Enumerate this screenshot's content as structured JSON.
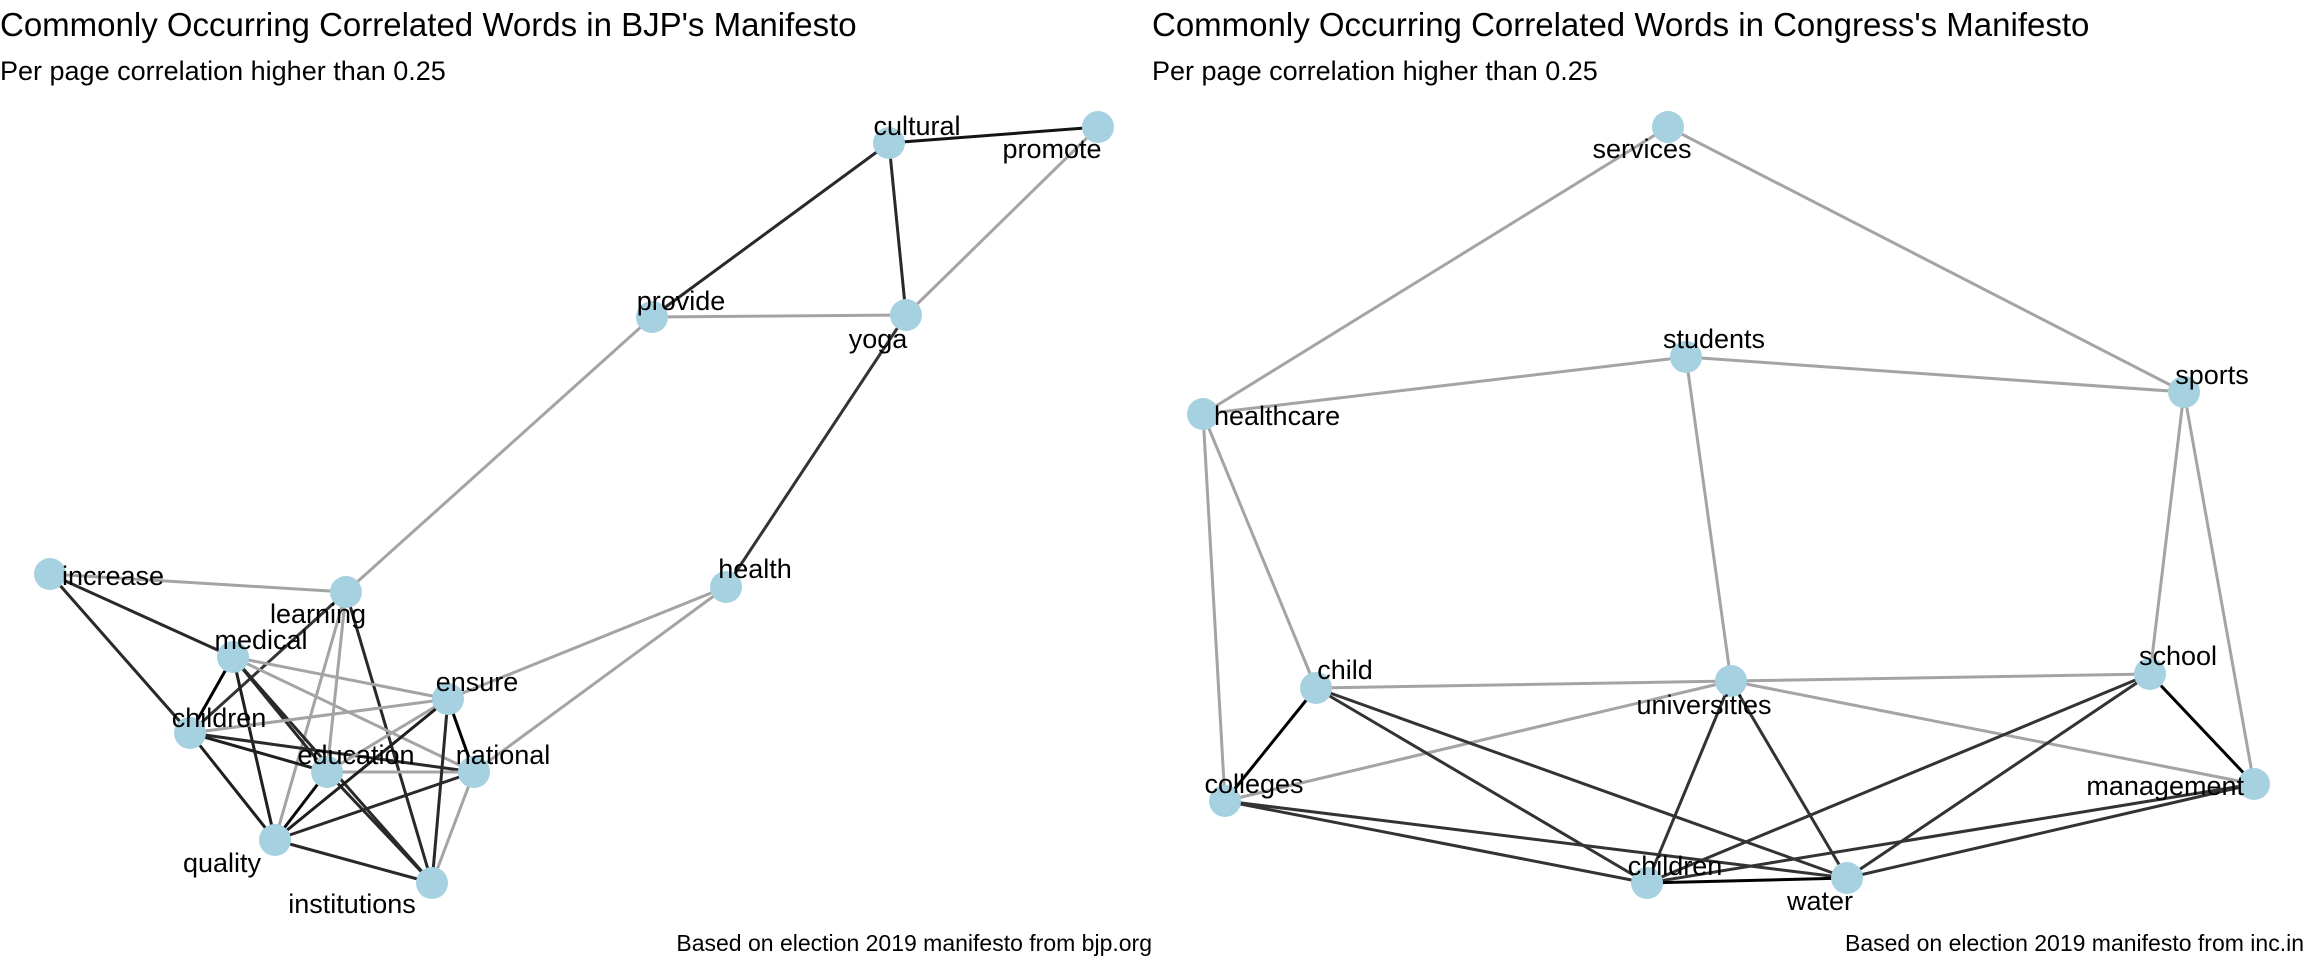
{
  "graphs": [
    {
      "title": "Commonly Occurring Correlated Words in BJP's Manifesto",
      "subtitle": "Per page correlation higher than 0.25",
      "caption": "Based on election 2019 manifesto from bjp.org",
      "node_color": "#a6d1e1",
      "nodes": [
        {
          "id": "cultural",
          "label": "cultural"
        },
        {
          "id": "promote",
          "label": "promote"
        },
        {
          "id": "provide",
          "label": "provide"
        },
        {
          "id": "yoga",
          "label": "yoga"
        },
        {
          "id": "health",
          "label": "health"
        },
        {
          "id": "increase",
          "label": "increase"
        },
        {
          "id": "learning",
          "label": "learning"
        },
        {
          "id": "medical",
          "label": "medical"
        },
        {
          "id": "ensure",
          "label": "ensure"
        },
        {
          "id": "children",
          "label": "children"
        },
        {
          "id": "education",
          "label": "education"
        },
        {
          "id": "national",
          "label": "national"
        },
        {
          "id": "quality",
          "label": "quality"
        },
        {
          "id": "institutions",
          "label": "institutions"
        }
      ],
      "edges": [
        {
          "from": "cultural",
          "to": "promote",
          "strength": 0.9
        },
        {
          "from": "cultural",
          "to": "provide",
          "strength": 0.8
        },
        {
          "from": "cultural",
          "to": "yoga",
          "strength": 0.8
        },
        {
          "from": "promote",
          "to": "yoga",
          "strength": 0.2
        },
        {
          "from": "provide",
          "to": "yoga",
          "strength": 0.2
        },
        {
          "from": "yoga",
          "to": "health",
          "strength": 0.75
        },
        {
          "from": "provide",
          "to": "learning",
          "strength": 0.2
        },
        {
          "from": "health",
          "to": "ensure",
          "strength": 0.2
        },
        {
          "from": "health",
          "to": "national",
          "strength": 0.2
        },
        {
          "from": "increase",
          "to": "learning",
          "strength": 0.2
        },
        {
          "from": "increase",
          "to": "medical",
          "strength": 0.8
        },
        {
          "from": "increase",
          "to": "children",
          "strength": 0.8
        },
        {
          "from": "learning",
          "to": "children",
          "strength": 0.75
        },
        {
          "from": "learning",
          "to": "education",
          "strength": 0.2
        },
        {
          "from": "learning",
          "to": "quality",
          "strength": 0.2
        },
        {
          "from": "learning",
          "to": "institutions",
          "strength": 0.8
        },
        {
          "from": "medical",
          "to": "children",
          "strength": 1.0
        },
        {
          "from": "medical",
          "to": "education",
          "strength": 0.8
        },
        {
          "from": "medical",
          "to": "quality",
          "strength": 0.85
        },
        {
          "from": "medical",
          "to": "ensure",
          "strength": 0.2
        },
        {
          "from": "medical",
          "to": "national",
          "strength": 0.2
        },
        {
          "from": "medical",
          "to": "institutions",
          "strength": 0.8
        },
        {
          "from": "children",
          "to": "education",
          "strength": 0.85
        },
        {
          "from": "children",
          "to": "quality",
          "strength": 0.85
        },
        {
          "from": "children",
          "to": "national",
          "strength": 0.8
        },
        {
          "from": "children",
          "to": "ensure",
          "strength": 0.2
        },
        {
          "from": "education",
          "to": "quality",
          "strength": 0.95
        },
        {
          "from": "education",
          "to": "institutions",
          "strength": 0.8
        },
        {
          "from": "education",
          "to": "ensure",
          "strength": 0.2
        },
        {
          "from": "education",
          "to": "national",
          "strength": 0.2
        },
        {
          "from": "ensure",
          "to": "national",
          "strength": 1.0
        },
        {
          "from": "ensure",
          "to": "quality",
          "strength": 0.85
        },
        {
          "from": "ensure",
          "to": "institutions",
          "strength": 0.8
        },
        {
          "from": "quality",
          "to": "national",
          "strength": 0.8
        },
        {
          "from": "quality",
          "to": "institutions",
          "strength": 0.8
        },
        {
          "from": "national",
          "to": "institutions",
          "strength": 0.2
        }
      ]
    },
    {
      "title": "Commonly Occurring Correlated Words in Congress's Manifesto",
      "subtitle": "Per page correlation higher than 0.25",
      "caption": "Based on election 2019 manifesto from inc.in",
      "node_color": "#a6d1e1",
      "nodes": [
        {
          "id": "services",
          "label": "services"
        },
        {
          "id": "students",
          "label": "students"
        },
        {
          "id": "healthcare",
          "label": "healthcare"
        },
        {
          "id": "sports",
          "label": "sports"
        },
        {
          "id": "child",
          "label": "child"
        },
        {
          "id": "universities",
          "label": "universities"
        },
        {
          "id": "school",
          "label": "school"
        },
        {
          "id": "colleges",
          "label": "colleges"
        },
        {
          "id": "management",
          "label": "management"
        },
        {
          "id": "children",
          "label": "children"
        },
        {
          "id": "water",
          "label": "water"
        }
      ],
      "edges": [
        {
          "from": "services",
          "to": "healthcare",
          "strength": 0.2
        },
        {
          "from": "services",
          "to": "sports",
          "strength": 0.2
        },
        {
          "from": "students",
          "to": "healthcare",
          "strength": 0.2
        },
        {
          "from": "students",
          "to": "sports",
          "strength": 0.2
        },
        {
          "from": "students",
          "to": "universities",
          "strength": 0.2
        },
        {
          "from": "healthcare",
          "to": "child",
          "strength": 0.2
        },
        {
          "from": "healthcare",
          "to": "colleges",
          "strength": 0.2
        },
        {
          "from": "sports",
          "to": "school",
          "strength": 0.2
        },
        {
          "from": "sports",
          "to": "management",
          "strength": 0.2
        },
        {
          "from": "child",
          "to": "universities",
          "strength": 0.2
        },
        {
          "from": "universities",
          "to": "school",
          "strength": 0.2
        },
        {
          "from": "universities",
          "to": "colleges",
          "strength": 0.2
        },
        {
          "from": "universities",
          "to": "management",
          "strength": 0.2
        },
        {
          "from": "child",
          "to": "colleges",
          "strength": 1.0
        },
        {
          "from": "school",
          "to": "management",
          "strength": 1.0
        },
        {
          "from": "child",
          "to": "children",
          "strength": 0.75
        },
        {
          "from": "child",
          "to": "water",
          "strength": 0.75
        },
        {
          "from": "universities",
          "to": "children",
          "strength": 0.75
        },
        {
          "from": "universities",
          "to": "water",
          "strength": 0.75
        },
        {
          "from": "school",
          "to": "children",
          "strength": 0.75
        },
        {
          "from": "school",
          "to": "water",
          "strength": 0.75
        },
        {
          "from": "colleges",
          "to": "children",
          "strength": 0.75
        },
        {
          "from": "colleges",
          "to": "water",
          "strength": 0.75
        },
        {
          "from": "management",
          "to": "children",
          "strength": 0.75
        },
        {
          "from": "management",
          "to": "water",
          "strength": 0.75
        },
        {
          "from": "children",
          "to": "water",
          "strength": 1.0
        }
      ]
    }
  ]
}
